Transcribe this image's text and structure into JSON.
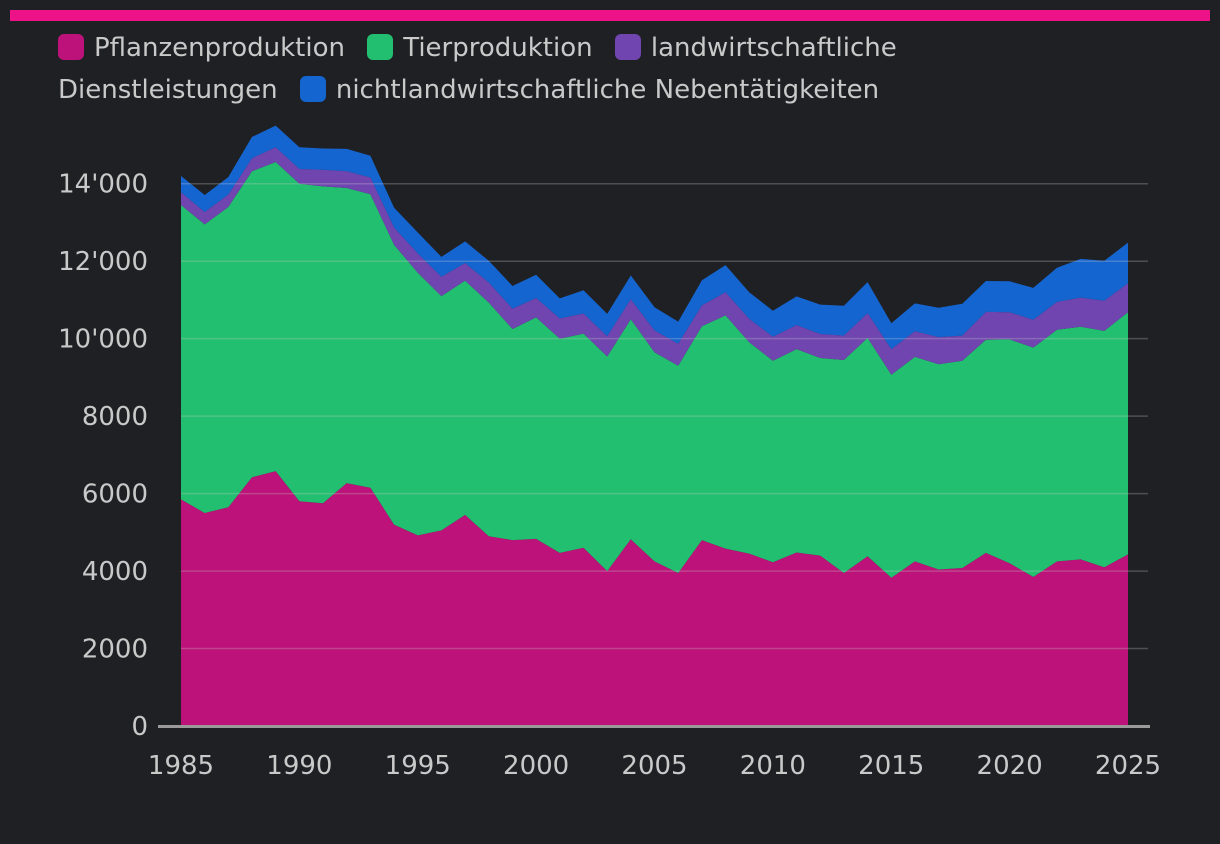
{
  "colors": {
    "background": "#1f2023",
    "accent": "#ee1289",
    "grid": "#555555",
    "axis": "#9a9a9a",
    "text": "#c9c9c9"
  },
  "chart_data": {
    "type": "area",
    "stacked": true,
    "title": "",
    "xlabel": "",
    "ylabel": "",
    "xlim": [
      1985,
      2025
    ],
    "ylim": [
      0,
      15000
    ],
    "x_ticks": [
      1985,
      1990,
      1995,
      2000,
      2005,
      2010,
      2015,
      2020,
      2025
    ],
    "y_ticks": [
      {
        "value": 0,
        "label": "0"
      },
      {
        "value": 2000,
        "label": "2000"
      },
      {
        "value": 4000,
        "label": "4000"
      },
      {
        "value": 6000,
        "label": "6000"
      },
      {
        "value": 8000,
        "label": "8000"
      },
      {
        "value": 10000,
        "label": "10'000"
      },
      {
        "value": 12000,
        "label": "12'000"
      },
      {
        "value": 14000,
        "label": "14'000"
      }
    ],
    "x": [
      1985,
      1986,
      1987,
      1988,
      1989,
      1990,
      1991,
      1992,
      1993,
      1994,
      1995,
      1996,
      1997,
      1998,
      1999,
      2000,
      2001,
      2002,
      2003,
      2004,
      2005,
      2006,
      2007,
      2008,
      2009,
      2010,
      2011,
      2012,
      2013,
      2014,
      2015,
      2016,
      2017,
      2018,
      2019,
      2020,
      2021,
      2022,
      2023,
      2024,
      2025
    ],
    "series": [
      {
        "name": "Pflanzenproduktion",
        "color": "#bc1279",
        "values": [
          5850,
          5500,
          5650,
          6420,
          6580,
          5800,
          5750,
          6270,
          6150,
          5200,
          4920,
          5050,
          5450,
          4900,
          4800,
          4830,
          4470,
          4600,
          4000,
          4820,
          4250,
          3950,
          4800,
          4580,
          4450,
          4230,
          4480,
          4400,
          3950,
          4380,
          3830,
          4250,
          4040,
          4080,
          4470,
          4200,
          3850,
          4250,
          4300,
          4100,
          4430
        ]
      },
      {
        "name": "Tierproduktion",
        "color": "#22bf70",
        "values": [
          7600,
          7450,
          7750,
          7900,
          7980,
          8200,
          8180,
          7620,
          7580,
          7220,
          6780,
          6050,
          6050,
          6030,
          5450,
          5720,
          5530,
          5530,
          5540,
          5680,
          5400,
          5350,
          5520,
          6020,
          5460,
          5200,
          5250,
          5100,
          5500,
          5640,
          5240,
          5280,
          5300,
          5350,
          5500,
          5780,
          5920,
          5980,
          6010,
          6100,
          6250
        ]
      },
      {
        "name": "landwirtschaftliche Dienstleistungen",
        "color": "#7045b0",
        "values": [
          330,
          320,
          320,
          340,
          380,
          380,
          430,
          430,
          430,
          450,
          500,
          500,
          450,
          520,
          520,
          500,
          520,
          520,
          520,
          520,
          560,
          570,
          540,
          600,
          600,
          620,
          620,
          620,
          630,
          640,
          660,
          660,
          700,
          650,
          720,
          700,
          720,
          720,
          750,
          780,
          750
        ]
      },
      {
        "name": "nichtlandwirtschaftliche Nebentätigkeiten",
        "color": "#1565d0",
        "values": [
          420,
          440,
          450,
          550,
          560,
          560,
          550,
          580,
          560,
          510,
          540,
          510,
          560,
          560,
          590,
          600,
          520,
          600,
          580,
          610,
          600,
          570,
          650,
          700,
          690,
          670,
          740,
          760,
          770,
          800,
          670,
          720,
          760,
          820,
          800,
          800,
          820,
          880,
          1000,
          1030,
          1050
        ]
      }
    ]
  }
}
